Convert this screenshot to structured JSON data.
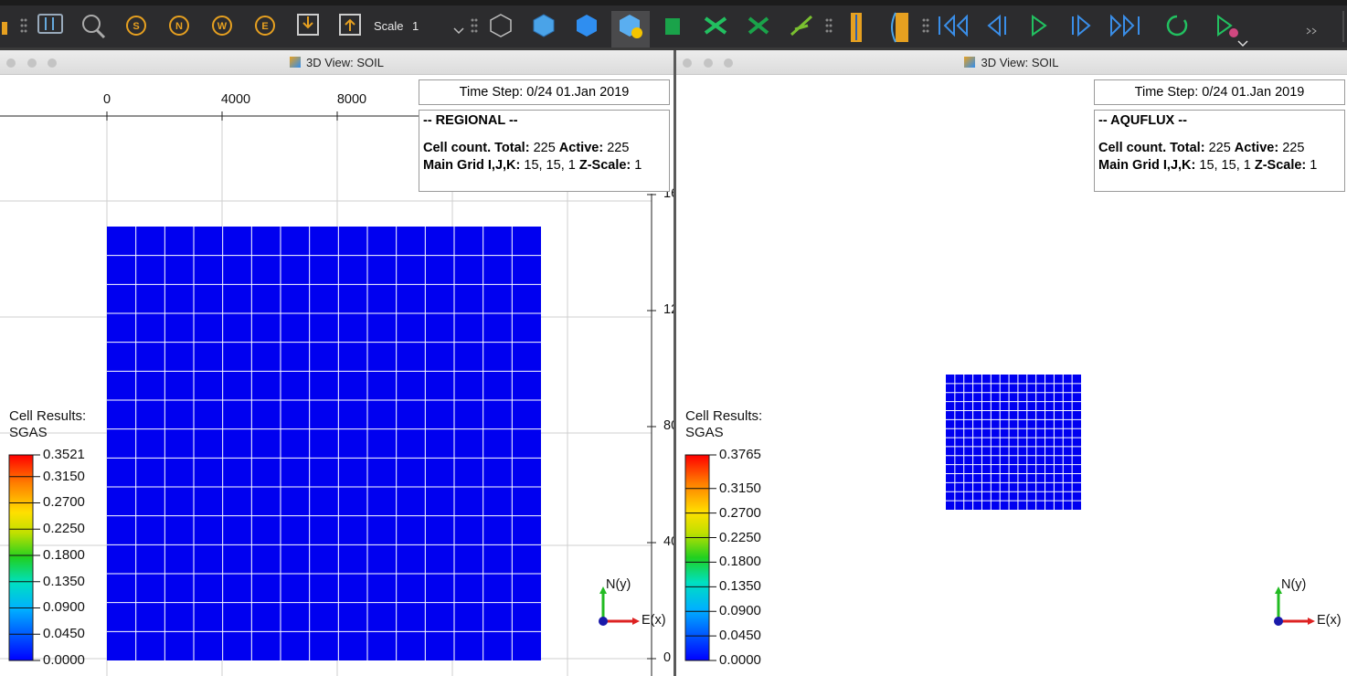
{
  "toolbar": {
    "scale_label": "Scale",
    "scale_value": "1"
  },
  "views": [
    {
      "title": "3D View: SOIL",
      "time_step": "Time Step: 0/24 01.Jan 2019",
      "case_name": "-- REGIONAL --",
      "cell_count": {
        "total_label": "Cell count. Total:",
        "total": "225",
        "active_label": "Active:",
        "active": "225"
      },
      "main_grid": {
        "label": "Main Grid I,J,K:",
        "value": "15, 15, 1",
        "zscale_label": "Z-Scale:",
        "zscale": "1"
      },
      "legend": {
        "title": "Cell Results:",
        "property": "SGAS",
        "ticks": [
          "0.3521",
          "0.3150",
          "0.2700",
          "0.2250",
          "0.1800",
          "0.1350",
          "0.0900",
          "0.0450",
          "0.0000"
        ]
      },
      "axis_triad": {
        "north": "N(y)",
        "east": "E(x)"
      },
      "x_axis_labels": [
        "0",
        "4000",
        "8000"
      ],
      "y_axis_labels": [
        "16",
        "12",
        "80",
        "40",
        "0"
      ]
    },
    {
      "title": "3D View: SOIL",
      "time_step": "Time Step: 0/24 01.Jan 2019",
      "case_name": "-- AQUFLUX --",
      "cell_count": {
        "total_label": "Cell count. Total:",
        "total": "225",
        "active_label": "Active:",
        "active": "225"
      },
      "main_grid": {
        "label": "Main Grid I,J,K:",
        "value": "15, 15, 1",
        "zscale_label": "Z-Scale:",
        "zscale": "1"
      },
      "legend": {
        "title": "Cell Results:",
        "property": "SGAS",
        "ticks": [
          "0.3765",
          "0.3150",
          "0.2700",
          "0.2250",
          "0.1800",
          "0.1350",
          "0.0900",
          "0.0450",
          "0.0000"
        ]
      },
      "axis_triad": {
        "north": "N(y)",
        "east": "E(x)"
      }
    }
  ]
}
